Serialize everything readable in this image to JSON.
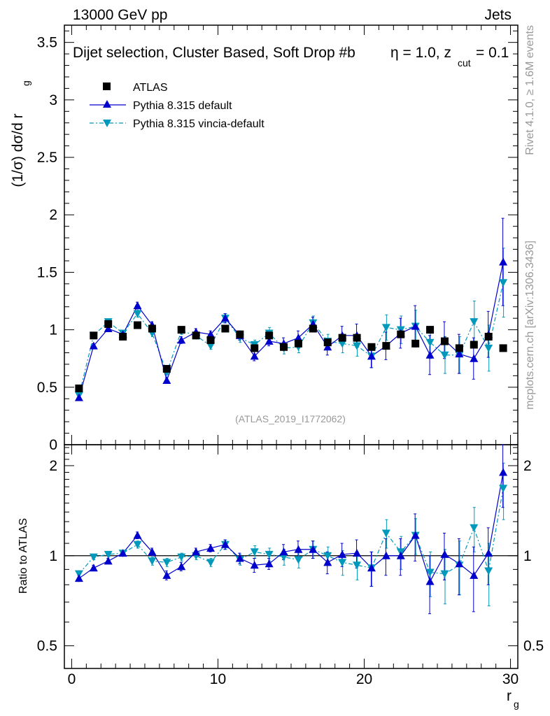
{
  "header": {
    "process": "13000 GeV pp",
    "category": "Jets",
    "side_rivet": "Rivet 4.1.0, ≥ 1.6M events",
    "side_mcplots": "mcplots.cern.ch [arXiv:1306.3436]"
  },
  "colors": {
    "atlas": "#000000",
    "pythia_default": "#0000cc",
    "pythia_vincia": "#0099bb",
    "watermark": "#999999"
  },
  "chart_data": [
    {
      "type": "scatter",
      "panel": "main",
      "title": "Dijet selection, Cluster Based, Soft Drop #b",
      "title_eta": "η = 1.0, z",
      "title_sub": "cut",
      "title_tail": " = 0.1",
      "ylabel_main": "(1/σ) dσ/d r",
      "ylabel_sub": "g",
      "watermark": "(ATLAS_2019_I1772062)",
      "xlim": [
        -0.5,
        30.5
      ],
      "ylim": [
        0,
        3.65
      ],
      "y_ticks": [
        0,
        0.5,
        1,
        1.5,
        2,
        2.5,
        3,
        3.5
      ],
      "y_tick_labels": [
        "0",
        "0.5",
        "1",
        "1.5",
        "2",
        "2.5",
        "3",
        "3.5"
      ],
      "legend": [
        {
          "label": "ATLAS",
          "marker": "square"
        },
        {
          "label": "Pythia 8.315 default",
          "marker": "triangle-up"
        },
        {
          "label": "Pythia 8.315 vincia-default",
          "marker": "triangle-down"
        }
      ],
      "x": [
        0.5,
        1.5,
        2.5,
        3.5,
        4.5,
        5.5,
        6.5,
        7.5,
        8.5,
        9.5,
        10.5,
        11.5,
        12.5,
        13.5,
        14.5,
        15.5,
        16.5,
        17.5,
        18.5,
        19.5,
        20.5,
        21.5,
        22.5,
        23.5,
        24.5,
        25.5,
        26.5,
        27.5,
        28.5,
        29.5
      ],
      "series": [
        {
          "name": "ATLAS",
          "values": [
            0.49,
            0.95,
            1.05,
            0.94,
            1.04,
            1.01,
            0.66,
            1.0,
            0.95,
            0.91,
            1.01,
            0.96,
            0.84,
            0.95,
            0.85,
            0.88,
            1.01,
            0.89,
            0.93,
            0.93,
            0.85,
            0.86,
            0.96,
            0.88,
            1.0,
            0.9,
            0.84,
            0.87,
            0.94,
            0.84
          ],
          "errors": [
            0.01,
            0.01,
            0.01,
            0.01,
            0.01,
            0.01,
            0.01,
            0.01,
            0.01,
            0.01,
            0.01,
            0.01,
            0.01,
            0.01,
            0.01,
            0.02,
            0.02,
            0.02,
            0.02,
            0.02,
            0.02,
            0.02,
            0.03,
            0.03,
            0.03,
            0.03,
            0.03,
            0.04,
            0.04,
            0.04
          ]
        },
        {
          "name": "Pythia 8.315 default",
          "values": [
            0.41,
            0.86,
            1.01,
            0.96,
            1.21,
            1.04,
            0.56,
            0.91,
            0.98,
            0.96,
            1.1,
            0.95,
            0.77,
            0.9,
            0.88,
            0.93,
            1.05,
            0.85,
            0.95,
            0.95,
            0.77,
            0.86,
            0.97,
            1.03,
            0.78,
            0.91,
            0.79,
            0.75,
            0.96,
            1.59
          ],
          "errors": [
            0.01,
            0.02,
            0.02,
            0.02,
            0.03,
            0.03,
            0.02,
            0.03,
            0.03,
            0.03,
            0.04,
            0.04,
            0.04,
            0.04,
            0.05,
            0.06,
            0.06,
            0.07,
            0.08,
            0.1,
            0.1,
            0.12,
            0.13,
            0.18,
            0.17,
            0.16,
            0.17,
            0.18,
            0.2,
            0.38
          ]
        },
        {
          "name": "Pythia 8.315 vincia-default",
          "values": [
            0.43,
            0.95,
            1.07,
            0.97,
            1.14,
            0.97,
            0.63,
            0.99,
            0.95,
            0.86,
            1.1,
            0.93,
            0.87,
            0.97,
            0.84,
            0.85,
            1.06,
            0.9,
            0.88,
            0.86,
            0.77,
            1.02,
            1.0,
            1.03,
            0.89,
            0.78,
            0.78,
            1.07,
            0.84,
            1.41
          ],
          "errors": [
            0.01,
            0.02,
            0.02,
            0.02,
            0.03,
            0.03,
            0.02,
            0.03,
            0.03,
            0.03,
            0.04,
            0.04,
            0.04,
            0.05,
            0.05,
            0.05,
            0.06,
            0.06,
            0.08,
            0.09,
            0.1,
            0.11,
            0.12,
            0.14,
            0.14,
            0.16,
            0.16,
            0.18,
            0.2,
            0.3
          ]
        }
      ]
    },
    {
      "type": "scatter",
      "panel": "ratio",
      "ylabel": "Ratio to ATLAS",
      "xlabel": "r",
      "xlabel_sub": "g",
      "xlim": [
        -0.5,
        30.5
      ],
      "ylim": [
        0.42,
        2.35
      ],
      "y_scale": "log",
      "y_ticks": [
        0.5,
        1,
        2
      ],
      "y_tick_labels": [
        "0.5",
        "1",
        "2"
      ],
      "x_ticks": [
        0,
        10,
        20,
        30
      ],
      "x_tick_labels": [
        "0",
        "10",
        "20",
        "30"
      ],
      "reference_line": 1,
      "series": [
        {
          "name": "Pythia 8.315 default",
          "values": [
            0.84,
            0.91,
            0.96,
            1.02,
            1.17,
            1.03,
            0.86,
            0.92,
            1.03,
            1.06,
            1.09,
            0.98,
            0.93,
            0.94,
            1.03,
            1.05,
            1.05,
            0.95,
            1.01,
            1.02,
            0.91,
            1.0,
            1.0,
            1.17,
            0.82,
            1.01,
            0.94,
            0.86,
            1.02,
            1.9
          ],
          "errors": [
            0.02,
            0.02,
            0.02,
            0.02,
            0.03,
            0.03,
            0.03,
            0.03,
            0.03,
            0.03,
            0.04,
            0.04,
            0.05,
            0.04,
            0.06,
            0.07,
            0.07,
            0.08,
            0.09,
            0.11,
            0.12,
            0.14,
            0.14,
            0.21,
            0.18,
            0.18,
            0.2,
            0.21,
            0.22,
            0.45
          ]
        },
        {
          "name": "Pythia 8.315 vincia-default",
          "values": [
            0.87,
            0.99,
            1.01,
            1.02,
            1.09,
            0.96,
            0.95,
            0.99,
            1.0,
            0.95,
            1.09,
            0.97,
            1.03,
            1.01,
            0.99,
            0.97,
            1.05,
            1.0,
            0.95,
            0.93,
            0.91,
            1.19,
            1.03,
            1.17,
            0.88,
            0.87,
            0.93,
            1.24,
            0.89,
            1.68
          ],
          "errors": [
            0.02,
            0.02,
            0.02,
            0.02,
            0.03,
            0.03,
            0.03,
            0.03,
            0.03,
            0.03,
            0.04,
            0.04,
            0.05,
            0.05,
            0.06,
            0.06,
            0.07,
            0.07,
            0.09,
            0.1,
            0.12,
            0.13,
            0.13,
            0.16,
            0.15,
            0.18,
            0.19,
            0.21,
            0.21,
            0.36
          ]
        }
      ]
    }
  ]
}
